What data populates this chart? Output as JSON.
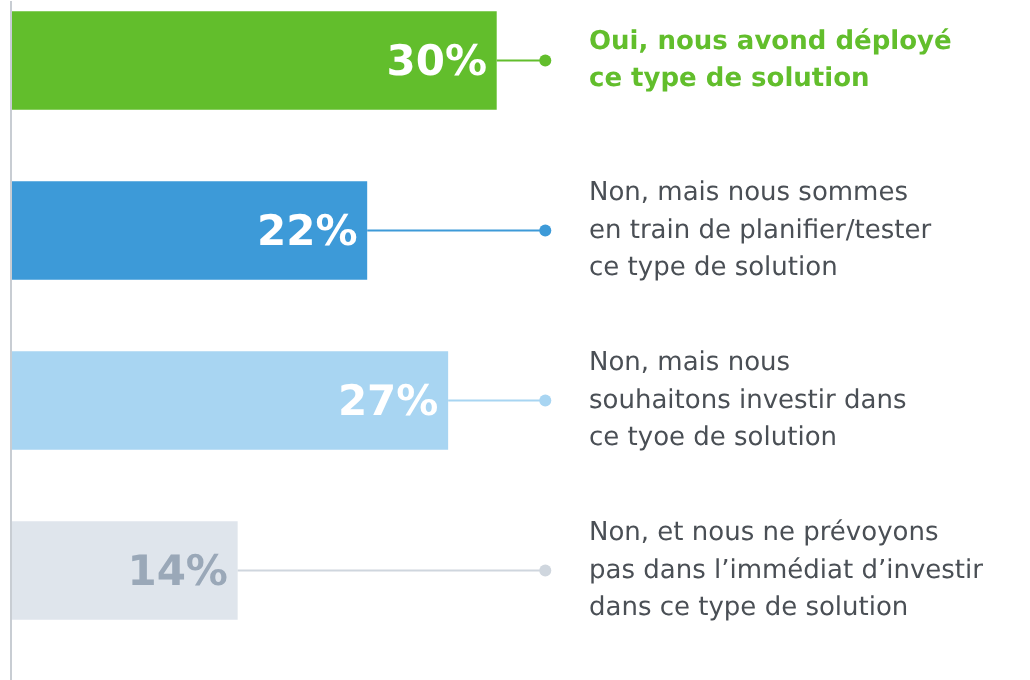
{
  "chart_data": {
    "type": "bar",
    "orientation": "horizontal",
    "categories": [
      "Oui, nous avond déployé\nce type de solution",
      "Non, mais nous sommes\nen train de planifier/tester\nce type de solution",
      "Non, mais nous\nsouhaitons investir dans\nce tyoe de solution",
      "Non, et nous ne prévoyons\npas dans l’immédiat d’investir\ndans ce type de solution"
    ],
    "values": [
      30,
      22,
      27,
      14
    ],
    "colors": [
      "#62be2c",
      "#3d9ad8",
      "#a8d5f2",
      "#dfe5ec"
    ],
    "value_labels": [
      "30%",
      "22%",
      "27%",
      "14%"
    ]
  }
}
